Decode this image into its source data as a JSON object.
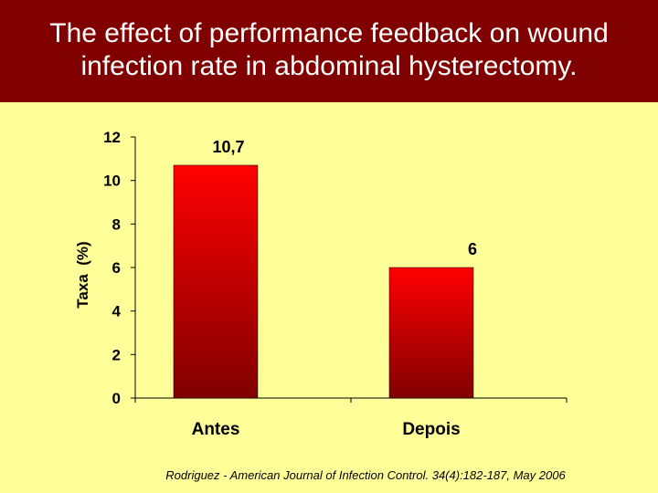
{
  "slide": {
    "title": "The effect of performance feedback on wound\ninfection rate in abdominal hysterectomy.",
    "citation": "Rodriguez - American Journal of Infection Control.  34(4):182-187, May 2006"
  },
  "colors": {
    "title_bar": "#800000",
    "background": "#ffff99",
    "bar_top": "#ff0000",
    "bar_bottom": "#800000"
  },
  "chart_data": {
    "type": "bar",
    "categories": [
      "Antes",
      "Depois"
    ],
    "values": [
      10.7,
      6
    ],
    "data_labels": [
      "10,7",
      "6"
    ],
    "ylabel": "Taxa  (%)",
    "xlabel": "",
    "ylim": [
      0,
      12
    ],
    "yticks": [
      0,
      2,
      4,
      6,
      8,
      10,
      12
    ],
    "grid": false,
    "legend": "none"
  }
}
